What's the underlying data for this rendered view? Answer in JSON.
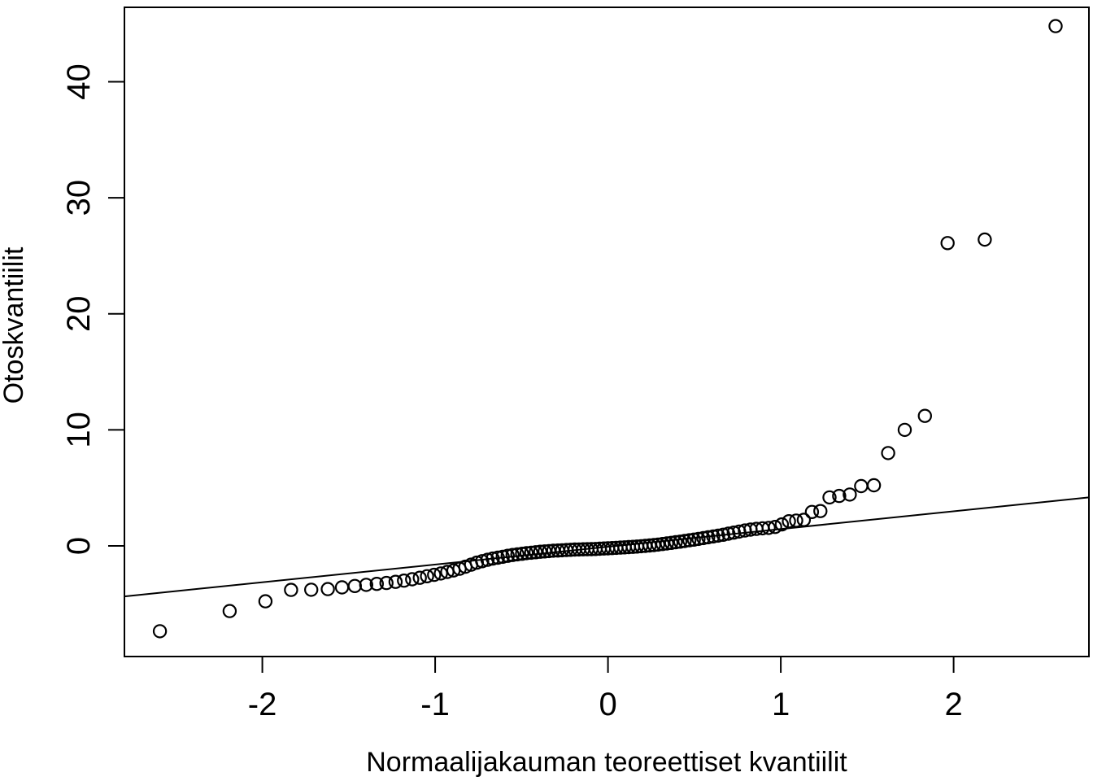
{
  "figure": {
    "background_color": "#ffffff",
    "stroke_color": "#000000"
  },
  "chart_data": {
    "type": "scatter",
    "subtype": "qq-plot",
    "title": "",
    "xlabel": "Normaalijakauman teoreettiset kvantiilit",
    "ylabel": "Otoskvantiilit",
    "xlim": [
      -2.798,
      2.783
    ],
    "ylim": [
      -9.54,
      46.42
    ],
    "x_ticks": [
      -2,
      -1,
      0,
      1,
      2
    ],
    "y_ticks": [
      0,
      10,
      20,
      30,
      40
    ],
    "grid": false,
    "legend": null,
    "marker": "open-circle",
    "reference_line": {
      "type": "qqline",
      "slope": 1.53,
      "intercept": -0.08
    },
    "points": [
      [
        -2.593,
        -7.36
      ],
      [
        -2.189,
        -5.62
      ],
      [
        -1.982,
        -4.78
      ],
      [
        -1.834,
        -3.8
      ],
      [
        -1.717,
        -3.78
      ],
      [
        -1.621,
        -3.73
      ],
      [
        -1.539,
        -3.58
      ],
      [
        -1.465,
        -3.46
      ],
      [
        -1.399,
        -3.36
      ],
      [
        -1.338,
        -3.28
      ],
      [
        -1.282,
        -3.2
      ],
      [
        -1.229,
        -3.1
      ],
      [
        -1.18,
        -3.0
      ],
      [
        -1.133,
        -2.88
      ],
      [
        -1.089,
        -2.75
      ],
      [
        -1.047,
        -2.62
      ],
      [
        -1.006,
        -2.5
      ],
      [
        -0.967,
        -2.38
      ],
      [
        -0.93,
        -2.25
      ],
      [
        -0.894,
        -2.12
      ],
      [
        -0.859,
        -1.97
      ],
      [
        -0.825,
        -1.8
      ],
      [
        -0.792,
        -1.62
      ],
      [
        -0.759,
        -1.45
      ],
      [
        -0.728,
        -1.32
      ],
      [
        -0.697,
        -1.2
      ],
      [
        -0.667,
        -1.1
      ],
      [
        -0.637,
        -1.02
      ],
      [
        -0.609,
        -0.94
      ],
      [
        -0.58,
        -0.86
      ],
      [
        -0.552,
        -0.79
      ],
      [
        -0.524,
        -0.73
      ],
      [
        -0.497,
        -0.68
      ],
      [
        -0.471,
        -0.63
      ],
      [
        -0.444,
        -0.59
      ],
      [
        -0.418,
        -0.55
      ],
      [
        -0.392,
        -0.51
      ],
      [
        -0.366,
        -0.48
      ],
      [
        -0.341,
        -0.45
      ],
      [
        -0.316,
        -0.42
      ],
      [
        -0.29,
        -0.4
      ],
      [
        -0.266,
        -0.38
      ],
      [
        -0.241,
        -0.36
      ],
      [
        -0.216,
        -0.34
      ],
      [
        -0.192,
        -0.32
      ],
      [
        -0.168,
        -0.31
      ],
      [
        -0.144,
        -0.3
      ],
      [
        -0.12,
        -0.29
      ],
      [
        -0.096,
        -0.28
      ],
      [
        -0.072,
        -0.27
      ],
      [
        -0.048,
        -0.25
      ],
      [
        -0.024,
        -0.23
      ],
      [
        0.0,
        -0.21
      ],
      [
        0.024,
        -0.19
      ],
      [
        0.048,
        -0.17
      ],
      [
        0.072,
        -0.15
      ],
      [
        0.096,
        -0.13
      ],
      [
        0.12,
        -0.11
      ],
      [
        0.144,
        -0.09
      ],
      [
        0.168,
        -0.06
      ],
      [
        0.192,
        -0.03
      ],
      [
        0.216,
        0.0
      ],
      [
        0.241,
        0.03
      ],
      [
        0.266,
        0.07
      ],
      [
        0.29,
        0.11
      ],
      [
        0.316,
        0.16
      ],
      [
        0.341,
        0.21
      ],
      [
        0.366,
        0.26
      ],
      [
        0.392,
        0.31
      ],
      [
        0.418,
        0.36
      ],
      [
        0.444,
        0.42
      ],
      [
        0.471,
        0.48
      ],
      [
        0.497,
        0.54
      ],
      [
        0.524,
        0.6
      ],
      [
        0.552,
        0.67
      ],
      [
        0.58,
        0.74
      ],
      [
        0.609,
        0.81
      ],
      [
        0.637,
        0.88
      ],
      [
        0.667,
        0.96
      ],
      [
        0.697,
        1.05
      ],
      [
        0.728,
        1.14
      ],
      [
        0.759,
        1.23
      ],
      [
        0.792,
        1.32
      ],
      [
        0.825,
        1.4
      ],
      [
        0.859,
        1.46
      ],
      [
        0.894,
        1.51
      ],
      [
        0.93,
        1.55
      ],
      [
        0.967,
        1.63
      ],
      [
        1.006,
        1.85
      ],
      [
        1.047,
        2.12
      ],
      [
        1.089,
        2.18
      ],
      [
        1.133,
        2.24
      ],
      [
        1.18,
        2.92
      ],
      [
        1.229,
        3.0
      ],
      [
        1.282,
        4.18
      ],
      [
        1.338,
        4.3
      ],
      [
        1.399,
        4.42
      ],
      [
        1.465,
        5.15
      ],
      [
        1.539,
        5.22
      ],
      [
        1.621,
        8.0
      ],
      [
        1.717,
        10.0
      ],
      [
        1.834,
        11.2
      ],
      [
        1.965,
        26.1
      ],
      [
        2.18,
        26.4
      ],
      [
        2.59,
        44.8
      ]
    ]
  }
}
